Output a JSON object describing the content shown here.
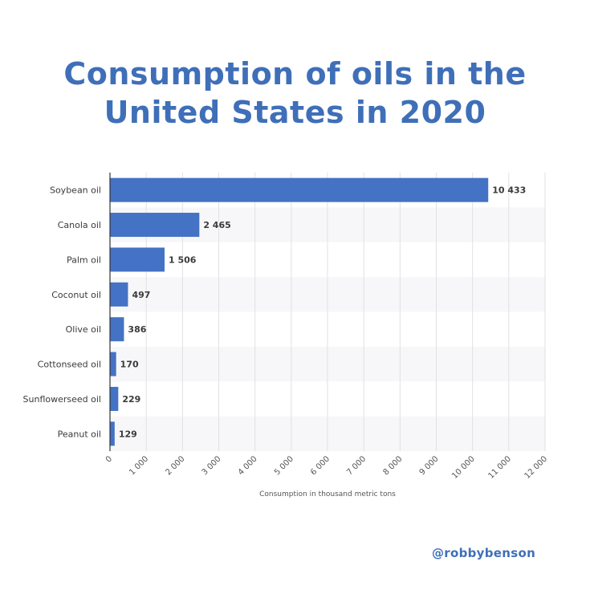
{
  "title_line1": "Consumption of oils in the",
  "title_line2": "United States in 2020",
  "handle": "@robbybenson",
  "colors": {
    "bar": "#4472c4",
    "title": "#3f6fb8",
    "stripe": "#f7f7f9",
    "grid": "#e1e1e1"
  },
  "chart_data": {
    "type": "bar",
    "orientation": "horizontal",
    "title": "Consumption of oils in the United States in 2020",
    "xlabel": "Consumption in thousand metric tons",
    "ylabel": "",
    "xlim": [
      0,
      12000
    ],
    "ticks": [
      0,
      1000,
      2000,
      3000,
      4000,
      5000,
      6000,
      7000,
      8000,
      9000,
      10000,
      11000,
      12000
    ],
    "tick_labels": [
      "0",
      "1 000",
      "2 000",
      "3 000",
      "4 000",
      "5 000",
      "6 000",
      "7 000",
      "8 000",
      "9 000",
      "10 000",
      "11 000",
      "12 000"
    ],
    "grid": true,
    "categories": [
      "Soybean oil",
      "Canola oil",
      "Palm oil",
      "Coconut oil",
      "Olive oil",
      "Cottonseed oil",
      "Sunflowerseed oil",
      "Peanut oil"
    ],
    "values": [
      10433,
      2465,
      1506,
      497,
      386,
      170,
      229,
      129
    ],
    "value_labels": [
      "10 433",
      "2 465",
      "1 506",
      "497",
      "386",
      "170",
      "229",
      "129"
    ]
  }
}
